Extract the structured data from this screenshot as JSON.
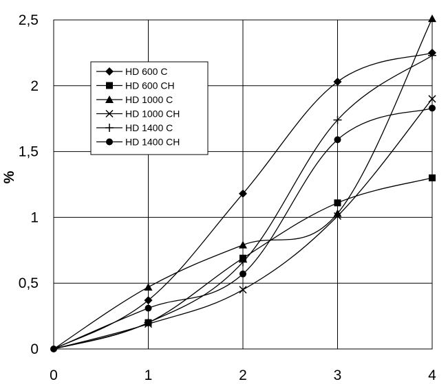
{
  "chart_data": {
    "type": "line",
    "title": "",
    "xlabel": "",
    "ylabel": "%",
    "x": [
      0,
      1,
      2,
      3,
      4
    ],
    "x_ticks": [
      "0",
      "1",
      "2",
      "3",
      "4"
    ],
    "y_ticks": [
      "0",
      "0,5",
      "1",
      "1,5",
      "2",
      "2,5"
    ],
    "xlim": [
      0,
      4
    ],
    "ylim": [
      0,
      2.5
    ],
    "grid": true,
    "legend_position": "upper-left",
    "series": [
      {
        "name": "HD 600 C",
        "marker": "diamond",
        "values": [
          0,
          0.37,
          1.18,
          2.03,
          2.25
        ]
      },
      {
        "name": "HD 600 CH",
        "marker": "square",
        "values": [
          0,
          0.2,
          0.69,
          1.11,
          1.3
        ]
      },
      {
        "name": "HD 1000 C",
        "marker": "triangle",
        "values": [
          0,
          0.47,
          0.79,
          1.03,
          2.51
        ]
      },
      {
        "name": "HD 1000 CH",
        "marker": "x",
        "values": [
          0,
          0.19,
          0.45,
          1.01,
          1.9
        ]
      },
      {
        "name": "HD 1400 C",
        "marker": "plus",
        "values": [
          0,
          0.2,
          0.66,
          1.74,
          2.23
        ]
      },
      {
        "name": "HD 1400 CH",
        "marker": "circle",
        "values": [
          0,
          0.31,
          0.57,
          1.59,
          1.83
        ]
      }
    ],
    "colors": {
      "line": "#000000",
      "grid": "#000000",
      "background": "#ffffff"
    }
  }
}
